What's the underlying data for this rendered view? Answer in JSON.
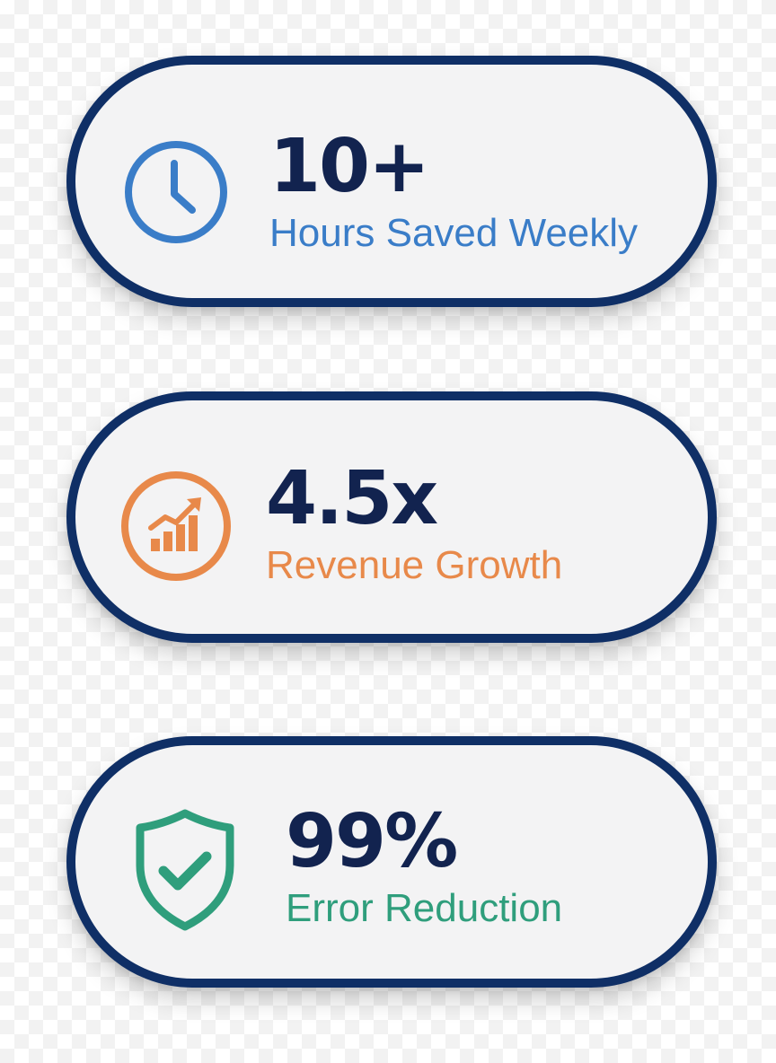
{
  "colors": {
    "border": "#0f2f66",
    "card_background": "#f3f3f4",
    "value_text": "#12234f"
  },
  "stats": [
    {
      "value": "10+",
      "label": "Hours Saved Weekly",
      "icon": "clock-icon",
      "color": "#3a7dc8"
    },
    {
      "value": "4.5x",
      "label": "Revenue Growth",
      "icon": "growth-chart-icon",
      "color": "#e8894a"
    },
    {
      "value": "99%",
      "label": "Error Reduction",
      "icon": "shield-check-icon",
      "color": "#2f9e7c"
    }
  ]
}
